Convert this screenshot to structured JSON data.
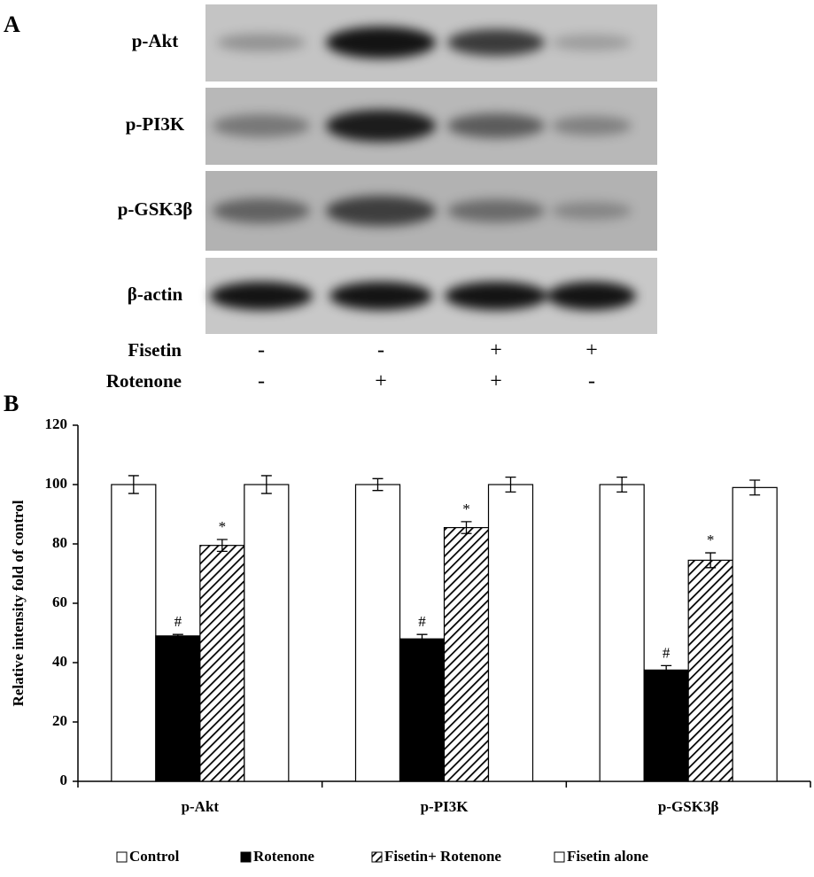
{
  "panel_a": {
    "label": "A",
    "blots": [
      "p-Akt",
      "p-PI3K",
      "p-GSK3β",
      "β-actin"
    ],
    "treatments": [
      {
        "name": "Fisetin",
        "signs": [
          "-",
          "-",
          "+",
          "+"
        ]
      },
      {
        "name": "Rotenone",
        "signs": [
          "-",
          "+",
          "+",
          "-"
        ]
      }
    ]
  },
  "chart_data": {
    "type": "bar",
    "label": "B",
    "y_label": "Relative intensity fold of control",
    "categories": [
      "p-Akt",
      "p-PI3K",
      "p-GSK3β"
    ],
    "series": [
      {
        "name": "Control",
        "color": "#ffffff",
        "values": [
          100,
          100,
          100
        ],
        "errors": [
          3,
          2,
          2.5
        ]
      },
      {
        "name": "Rotenone",
        "color": "#000000",
        "values": [
          49,
          48,
          37.5
        ],
        "errors": [
          0.5,
          1.5,
          1.5
        ],
        "annotations": [
          "#",
          "#",
          "#"
        ]
      },
      {
        "name": "Fisetin+ Rotenone",
        "color": "hatch",
        "values": [
          79.5,
          85.5,
          74.5
        ],
        "errors": [
          2,
          2,
          2.5
        ],
        "annotations": [
          "*",
          "*",
          "*"
        ]
      },
      {
        "name": "Fisetin alone",
        "color": "#ffffff",
        "values": [
          100,
          100,
          99
        ],
        "errors": [
          3,
          2.5,
          2.5
        ]
      }
    ],
    "ylim": [
      0,
      120
    ],
    "yticks": [
      0,
      20,
      40,
      60,
      80,
      100,
      120
    ],
    "grid": false,
    "legend": "bottom"
  }
}
